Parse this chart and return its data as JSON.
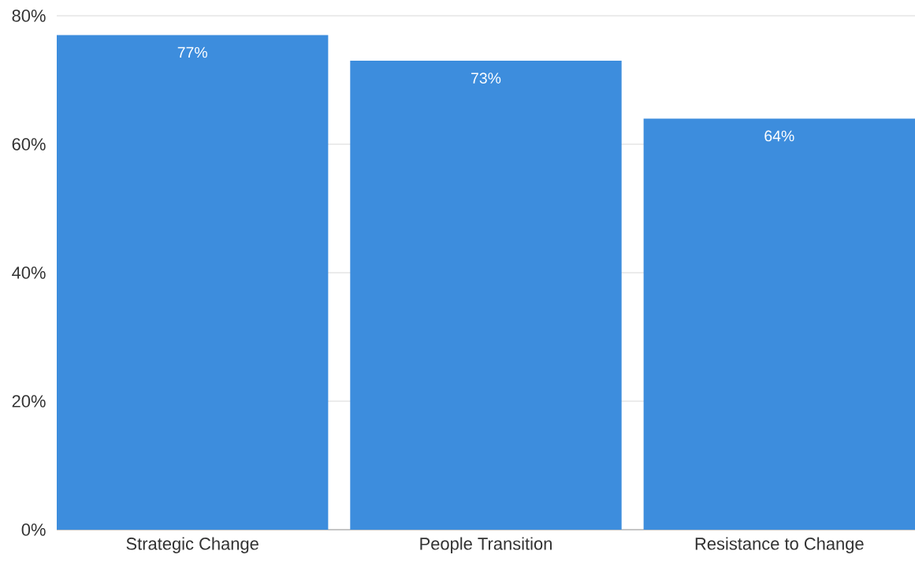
{
  "chart_data": {
    "type": "bar",
    "categories": [
      "Strategic Change",
      "People Transition",
      "Resistance to Change"
    ],
    "values": [
      77,
      73,
      64
    ],
    "value_labels": [
      "77%",
      "73%",
      "64%"
    ],
    "color": "#3d8ddd",
    "ylim": [
      0,
      80
    ],
    "yticks": [
      {
        "value": 0,
        "label": "0%"
      },
      {
        "value": 20,
        "label": "20%"
      },
      {
        "value": 40,
        "label": "40%"
      },
      {
        "value": 60,
        "label": "60%"
      },
      {
        "value": 80,
        "label": "80%"
      }
    ],
    "grid": "y"
  }
}
